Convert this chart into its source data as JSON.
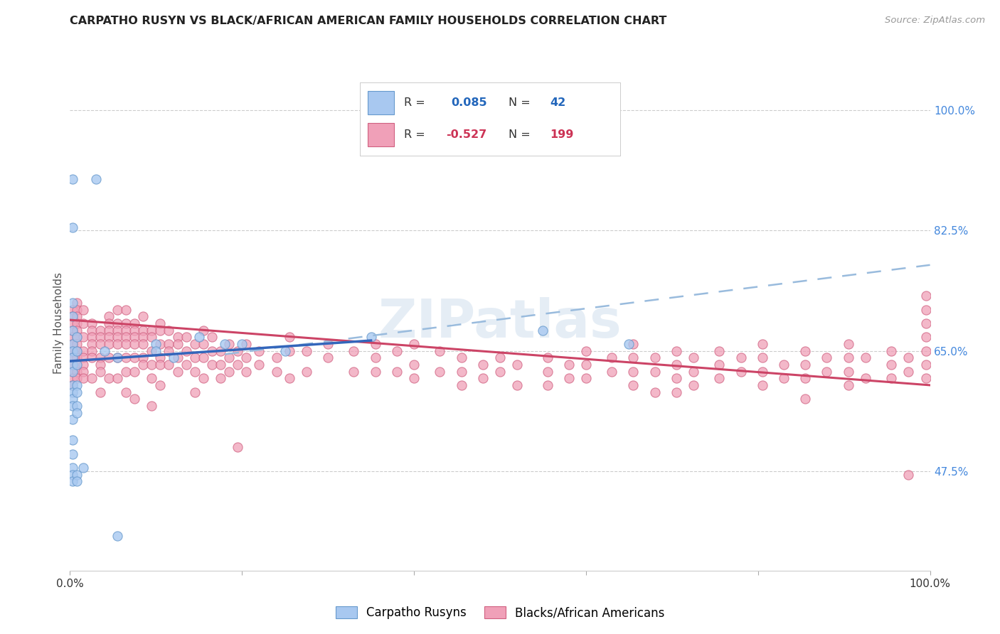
{
  "title": "CARPATHO RUSYN VS BLACK/AFRICAN AMERICAN FAMILY HOUSEHOLDS CORRELATION CHART",
  "source": "Source: ZipAtlas.com",
  "ylabel": "Family Households",
  "ytick_labels": [
    "47.5%",
    "65.0%",
    "82.5%",
    "100.0%"
  ],
  "ytick_values": [
    0.475,
    0.65,
    0.825,
    1.0
  ],
  "xmin": 0.0,
  "xmax": 1.0,
  "ymin": 0.33,
  "ymax": 1.05,
  "color_blue": "#a8c8f0",
  "color_pink": "#f0a0b8",
  "color_blue_edge": "#6699cc",
  "color_pink_edge": "#d06080",
  "color_blue_line": "#3366bb",
  "color_pink_line": "#cc4466",
  "color_blue_dash": "#99bbdd",
  "color_grid": "#cccccc",
  "color_ytick": "#4488dd",
  "watermark": "ZIPatlas",
  "blue_points": [
    [
      0.003,
      0.9
    ],
    [
      0.003,
      0.83
    ],
    [
      0.003,
      0.72
    ],
    [
      0.003,
      0.7
    ],
    [
      0.003,
      0.68
    ],
    [
      0.003,
      0.66
    ],
    [
      0.003,
      0.65
    ],
    [
      0.003,
      0.64
    ],
    [
      0.003,
      0.63
    ],
    [
      0.003,
      0.62
    ],
    [
      0.003,
      0.6
    ],
    [
      0.003,
      0.59
    ],
    [
      0.003,
      0.58
    ],
    [
      0.003,
      0.57
    ],
    [
      0.003,
      0.55
    ],
    [
      0.003,
      0.52
    ],
    [
      0.003,
      0.5
    ],
    [
      0.003,
      0.48
    ],
    [
      0.003,
      0.47
    ],
    [
      0.003,
      0.46
    ],
    [
      0.008,
      0.67
    ],
    [
      0.008,
      0.65
    ],
    [
      0.008,
      0.63
    ],
    [
      0.008,
      0.6
    ],
    [
      0.008,
      0.59
    ],
    [
      0.008,
      0.57
    ],
    [
      0.008,
      0.56
    ],
    [
      0.008,
      0.47
    ],
    [
      0.008,
      0.46
    ],
    [
      0.015,
      0.48
    ],
    [
      0.03,
      0.9
    ],
    [
      0.04,
      0.65
    ],
    [
      0.055,
      0.64
    ],
    [
      0.055,
      0.38
    ],
    [
      0.1,
      0.66
    ],
    [
      0.1,
      0.65
    ],
    [
      0.12,
      0.64
    ],
    [
      0.15,
      0.67
    ],
    [
      0.18,
      0.66
    ],
    [
      0.2,
      0.66
    ],
    [
      0.25,
      0.65
    ],
    [
      0.35,
      0.67
    ],
    [
      0.55,
      0.68
    ],
    [
      0.65,
      0.66
    ]
  ],
  "pink_points": [
    [
      0.003,
      0.71
    ],
    [
      0.003,
      0.7
    ],
    [
      0.003,
      0.69
    ],
    [
      0.003,
      0.68
    ],
    [
      0.003,
      0.67
    ],
    [
      0.003,
      0.66
    ],
    [
      0.003,
      0.65
    ],
    [
      0.003,
      0.64
    ],
    [
      0.003,
      0.63
    ],
    [
      0.003,
      0.62
    ],
    [
      0.003,
      0.61
    ],
    [
      0.003,
      0.6
    ],
    [
      0.008,
      0.72
    ],
    [
      0.008,
      0.71
    ],
    [
      0.008,
      0.7
    ],
    [
      0.008,
      0.69
    ],
    [
      0.008,
      0.68
    ],
    [
      0.008,
      0.67
    ],
    [
      0.008,
      0.66
    ],
    [
      0.008,
      0.65
    ],
    [
      0.008,
      0.64
    ],
    [
      0.008,
      0.63
    ],
    [
      0.008,
      0.62
    ],
    [
      0.008,
      0.61
    ],
    [
      0.015,
      0.71
    ],
    [
      0.015,
      0.69
    ],
    [
      0.015,
      0.67
    ],
    [
      0.015,
      0.65
    ],
    [
      0.015,
      0.64
    ],
    [
      0.015,
      0.63
    ],
    [
      0.015,
      0.62
    ],
    [
      0.015,
      0.61
    ],
    [
      0.025,
      0.69
    ],
    [
      0.025,
      0.68
    ],
    [
      0.025,
      0.67
    ],
    [
      0.025,
      0.66
    ],
    [
      0.025,
      0.65
    ],
    [
      0.025,
      0.64
    ],
    [
      0.025,
      0.61
    ],
    [
      0.035,
      0.68
    ],
    [
      0.035,
      0.67
    ],
    [
      0.035,
      0.66
    ],
    [
      0.035,
      0.64
    ],
    [
      0.035,
      0.63
    ],
    [
      0.035,
      0.62
    ],
    [
      0.035,
      0.59
    ],
    [
      0.045,
      0.7
    ],
    [
      0.045,
      0.69
    ],
    [
      0.045,
      0.68
    ],
    [
      0.045,
      0.67
    ],
    [
      0.045,
      0.66
    ],
    [
      0.045,
      0.64
    ],
    [
      0.045,
      0.61
    ],
    [
      0.055,
      0.71
    ],
    [
      0.055,
      0.69
    ],
    [
      0.055,
      0.68
    ],
    [
      0.055,
      0.67
    ],
    [
      0.055,
      0.66
    ],
    [
      0.055,
      0.64
    ],
    [
      0.055,
      0.61
    ],
    [
      0.065,
      0.71
    ],
    [
      0.065,
      0.69
    ],
    [
      0.065,
      0.68
    ],
    [
      0.065,
      0.67
    ],
    [
      0.065,
      0.66
    ],
    [
      0.065,
      0.64
    ],
    [
      0.065,
      0.62
    ],
    [
      0.065,
      0.59
    ],
    [
      0.075,
      0.69
    ],
    [
      0.075,
      0.68
    ],
    [
      0.075,
      0.67
    ],
    [
      0.075,
      0.66
    ],
    [
      0.075,
      0.64
    ],
    [
      0.075,
      0.62
    ],
    [
      0.075,
      0.58
    ],
    [
      0.085,
      0.7
    ],
    [
      0.085,
      0.68
    ],
    [
      0.085,
      0.67
    ],
    [
      0.085,
      0.66
    ],
    [
      0.085,
      0.64
    ],
    [
      0.085,
      0.63
    ],
    [
      0.095,
      0.68
    ],
    [
      0.095,
      0.67
    ],
    [
      0.095,
      0.65
    ],
    [
      0.095,
      0.63
    ],
    [
      0.095,
      0.61
    ],
    [
      0.095,
      0.57
    ],
    [
      0.105,
      0.69
    ],
    [
      0.105,
      0.68
    ],
    [
      0.105,
      0.66
    ],
    [
      0.105,
      0.64
    ],
    [
      0.105,
      0.63
    ],
    [
      0.105,
      0.6
    ],
    [
      0.115,
      0.68
    ],
    [
      0.115,
      0.66
    ],
    [
      0.115,
      0.65
    ],
    [
      0.115,
      0.63
    ],
    [
      0.125,
      0.67
    ],
    [
      0.125,
      0.66
    ],
    [
      0.125,
      0.64
    ],
    [
      0.125,
      0.62
    ],
    [
      0.135,
      0.67
    ],
    [
      0.135,
      0.65
    ],
    [
      0.135,
      0.63
    ],
    [
      0.145,
      0.66
    ],
    [
      0.145,
      0.64
    ],
    [
      0.145,
      0.62
    ],
    [
      0.145,
      0.59
    ],
    [
      0.155,
      0.68
    ],
    [
      0.155,
      0.66
    ],
    [
      0.155,
      0.64
    ],
    [
      0.155,
      0.61
    ],
    [
      0.165,
      0.67
    ],
    [
      0.165,
      0.65
    ],
    [
      0.165,
      0.63
    ],
    [
      0.175,
      0.65
    ],
    [
      0.175,
      0.63
    ],
    [
      0.175,
      0.61
    ],
    [
      0.185,
      0.66
    ],
    [
      0.185,
      0.64
    ],
    [
      0.185,
      0.62
    ],
    [
      0.195,
      0.65
    ],
    [
      0.195,
      0.63
    ],
    [
      0.195,
      0.51
    ],
    [
      0.205,
      0.66
    ],
    [
      0.205,
      0.64
    ],
    [
      0.205,
      0.62
    ],
    [
      0.22,
      0.65
    ],
    [
      0.22,
      0.63
    ],
    [
      0.24,
      0.64
    ],
    [
      0.24,
      0.62
    ],
    [
      0.255,
      0.67
    ],
    [
      0.255,
      0.65
    ],
    [
      0.255,
      0.61
    ],
    [
      0.275,
      0.65
    ],
    [
      0.275,
      0.62
    ],
    [
      0.3,
      0.66
    ],
    [
      0.3,
      0.64
    ],
    [
      0.33,
      0.65
    ],
    [
      0.33,
      0.62
    ],
    [
      0.355,
      0.66
    ],
    [
      0.355,
      0.64
    ],
    [
      0.355,
      0.62
    ],
    [
      0.38,
      0.65
    ],
    [
      0.38,
      0.62
    ],
    [
      0.4,
      0.66
    ],
    [
      0.4,
      0.63
    ],
    [
      0.4,
      0.61
    ],
    [
      0.43,
      0.65
    ],
    [
      0.43,
      0.62
    ],
    [
      0.455,
      0.64
    ],
    [
      0.455,
      0.62
    ],
    [
      0.455,
      0.6
    ],
    [
      0.48,
      0.63
    ],
    [
      0.48,
      0.61
    ],
    [
      0.5,
      0.64
    ],
    [
      0.5,
      0.62
    ],
    [
      0.52,
      0.63
    ],
    [
      0.52,
      0.6
    ],
    [
      0.555,
      0.64
    ],
    [
      0.555,
      0.62
    ],
    [
      0.555,
      0.6
    ],
    [
      0.58,
      0.63
    ],
    [
      0.58,
      0.61
    ],
    [
      0.6,
      0.65
    ],
    [
      0.6,
      0.63
    ],
    [
      0.6,
      0.61
    ],
    [
      0.63,
      0.64
    ],
    [
      0.63,
      0.62
    ],
    [
      0.655,
      0.66
    ],
    [
      0.655,
      0.64
    ],
    [
      0.655,
      0.62
    ],
    [
      0.655,
      0.6
    ],
    [
      0.68,
      0.64
    ],
    [
      0.68,
      0.62
    ],
    [
      0.68,
      0.59
    ],
    [
      0.705,
      0.65
    ],
    [
      0.705,
      0.63
    ],
    [
      0.705,
      0.61
    ],
    [
      0.705,
      0.59
    ],
    [
      0.725,
      0.64
    ],
    [
      0.725,
      0.62
    ],
    [
      0.725,
      0.6
    ],
    [
      0.755,
      0.65
    ],
    [
      0.755,
      0.63
    ],
    [
      0.755,
      0.61
    ],
    [
      0.78,
      0.64
    ],
    [
      0.78,
      0.62
    ],
    [
      0.805,
      0.66
    ],
    [
      0.805,
      0.64
    ],
    [
      0.805,
      0.62
    ],
    [
      0.805,
      0.6
    ],
    [
      0.83,
      0.63
    ],
    [
      0.83,
      0.61
    ],
    [
      0.855,
      0.65
    ],
    [
      0.855,
      0.63
    ],
    [
      0.855,
      0.61
    ],
    [
      0.855,
      0.58
    ],
    [
      0.88,
      0.64
    ],
    [
      0.88,
      0.62
    ],
    [
      0.905,
      0.66
    ],
    [
      0.905,
      0.64
    ],
    [
      0.905,
      0.62
    ],
    [
      0.905,
      0.6
    ],
    [
      0.925,
      0.64
    ],
    [
      0.925,
      0.61
    ],
    [
      0.955,
      0.65
    ],
    [
      0.955,
      0.63
    ],
    [
      0.955,
      0.61
    ],
    [
      0.975,
      0.64
    ],
    [
      0.975,
      0.62
    ],
    [
      0.975,
      0.47
    ],
    [
      0.995,
      0.73
    ],
    [
      0.995,
      0.71
    ],
    [
      0.995,
      0.69
    ],
    [
      0.995,
      0.67
    ],
    [
      0.995,
      0.65
    ],
    [
      0.995,
      0.63
    ],
    [
      0.995,
      0.61
    ]
  ],
  "blue_line_solid": {
    "x0": 0.0,
    "x1": 0.35,
    "y0": 0.635,
    "y1": 0.665
  },
  "blue_line_dashed": {
    "x0": 0.18,
    "x1": 1.0,
    "y0": 0.645,
    "y1": 0.775
  },
  "pink_line": {
    "x0": 0.0,
    "x1": 1.0,
    "y0": 0.695,
    "y1": 0.6
  }
}
